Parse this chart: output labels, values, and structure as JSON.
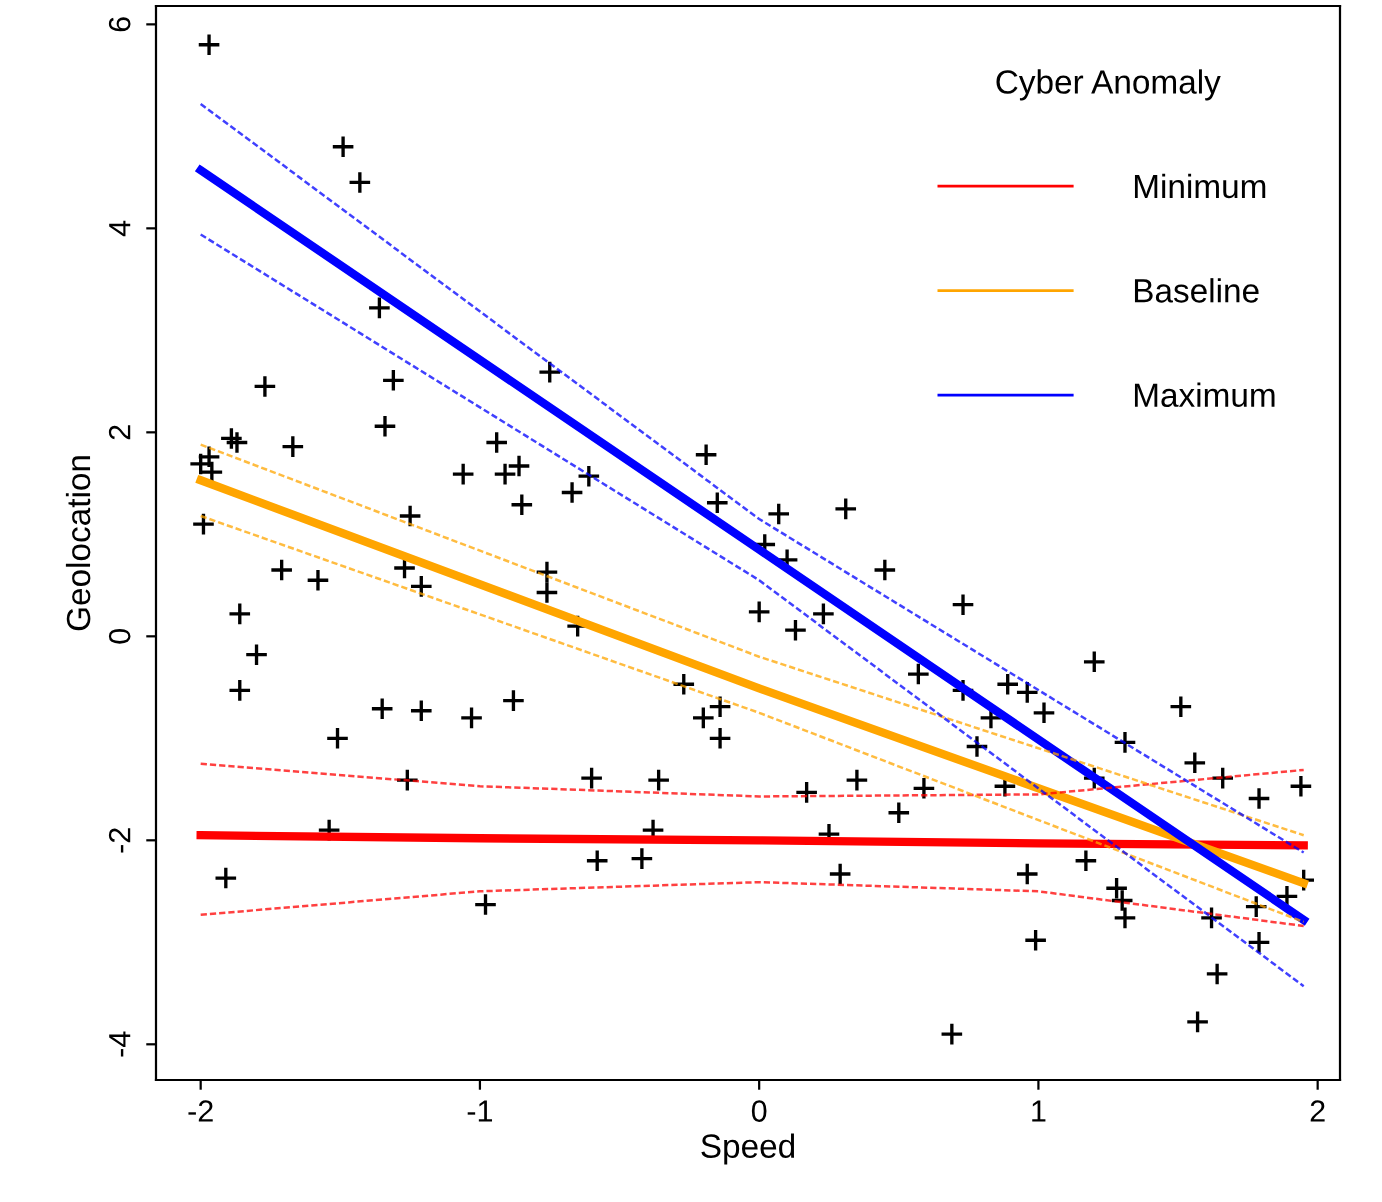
{
  "chart_data": {
    "type": "scatter",
    "xlabel": "Speed",
    "ylabel": "Geolocation",
    "legend_title": "Cyber Anomaly",
    "legend": "top right",
    "grid": false,
    "xlim": [
      -2.16,
      2.08
    ],
    "ylim": [
      -4.35,
      6.18
    ],
    "xticks": [
      -2,
      -1,
      0,
      1,
      2
    ],
    "yticks": [
      -4,
      -2,
      0,
      2,
      4,
      6
    ],
    "series": [
      {
        "color": "#000000",
        "marker": "cross",
        "x": [
          -1.97,
          -1.49,
          -1.43,
          -1.36,
          -0.75,
          -1.77,
          -1.31,
          -1.34,
          -1.89,
          -1.87,
          -1.67,
          -0.94,
          -2.0,
          -1.97,
          -1.96,
          -1.06,
          -0.91,
          -0.86,
          -0.67,
          -0.61,
          -0.85,
          -1.25,
          -1.99,
          -1.71,
          -1.58,
          -1.27,
          -1.21,
          -0.76,
          -0.76,
          -1.86,
          -1.8,
          -1.86,
          -1.35,
          -1.21,
          -1.03,
          -0.88,
          -0.65,
          -1.51,
          -1.26,
          -0.6,
          -1.54,
          -1.91,
          -0.98,
          -0.58,
          -0.19,
          -0.15,
          0.07,
          0.31,
          0.02,
          0.1,
          0.45,
          0.73,
          0.0,
          0.23,
          0.13,
          0.57,
          0.73,
          -0.27,
          -0.14,
          -0.2,
          -0.14,
          0.78,
          -0.36,
          0.17,
          0.35,
          0.59,
          0.5,
          -0.38,
          0.25,
          -0.42,
          0.29,
          0.69,
          1.2,
          0.89,
          0.96,
          1.02,
          0.83,
          1.51,
          1.31,
          1.56,
          1.66,
          1.79,
          1.94,
          0.88,
          1.2,
          1.17,
          0.96,
          1.28,
          1.3,
          1.31,
          1.62,
          1.78,
          1.89,
          1.95,
          1.79,
          0.99,
          1.64,
          1.57
        ],
        "values": [
          5.8,
          4.8,
          4.45,
          3.22,
          2.59,
          2.45,
          2.51,
          2.06,
          1.94,
          1.9,
          1.86,
          1.9,
          1.69,
          1.76,
          1.61,
          1.59,
          1.59,
          1.67,
          1.41,
          1.57,
          1.29,
          1.18,
          1.1,
          0.65,
          0.55,
          0.67,
          0.49,
          0.63,
          0.43,
          0.22,
          -0.18,
          -0.53,
          -0.71,
          -0.73,
          -0.8,
          -0.63,
          0.1,
          -1.0,
          -1.41,
          -1.39,
          -1.9,
          -2.37,
          -2.63,
          -2.2,
          1.78,
          1.31,
          1.2,
          1.25,
          0.9,
          0.75,
          0.65,
          0.31,
          0.24,
          0.22,
          0.06,
          -0.37,
          -0.53,
          -0.47,
          -0.69,
          -0.8,
          -1.0,
          -1.08,
          -1.41,
          -1.53,
          -1.41,
          -1.49,
          -1.73,
          -1.9,
          -1.94,
          -2.18,
          -2.33,
          -3.9,
          -0.25,
          -0.47,
          -0.55,
          -0.75,
          -0.8,
          -0.69,
          -1.04,
          -1.24,
          -1.39,
          -1.59,
          -1.47,
          -1.47,
          -1.39,
          -2.2,
          -2.33,
          -2.47,
          -2.59,
          -2.76,
          -2.76,
          -2.65,
          -2.55,
          -2.39,
          -3.0,
          -2.98,
          -3.31,
          -3.78
        ]
      },
      {
        "type": "line",
        "name": "Minimum",
        "color": "#ff0000",
        "marker": "none",
        "line_style": "solid",
        "x": [
          -2,
          -1,
          0,
          1,
          1.95
        ],
        "values": [
          -1.95,
          -1.98,
          -2.0,
          -2.03,
          -2.05
        ]
      },
      {
        "type": "line",
        "color": "#ff0000",
        "marker": "none",
        "line_style": "dashed",
        "x": [
          -2,
          -1,
          0,
          1,
          1.95
        ],
        "values": [
          -2.73,
          -2.5,
          -2.41,
          -2.5,
          -2.84
        ]
      },
      {
        "type": "line",
        "color": "#ff0000",
        "marker": "none",
        "line_style": "dashed",
        "x": [
          -2,
          -1,
          0,
          1,
          1.95
        ],
        "values": [
          -1.25,
          -1.47,
          -1.57,
          -1.55,
          -1.31
        ]
      },
      {
        "type": "line",
        "name": "Baseline",
        "color": "#ffa500",
        "marker": "none",
        "line_style": "solid",
        "x": [
          -2,
          0,
          1.95
        ],
        "values": [
          1.53,
          -0.51,
          -2.42
        ]
      },
      {
        "type": "line",
        "color": "#ffa500",
        "marker": "none",
        "line_style": "dashed",
        "x": [
          -2,
          0,
          1.95
        ],
        "values": [
          1.18,
          -0.75,
          -2.8
        ]
      },
      {
        "type": "line",
        "color": "#ffa500",
        "marker": "none",
        "line_style": "dashed",
        "x": [
          -2,
          0,
          1.95
        ],
        "values": [
          1.88,
          -0.2,
          -1.95
        ]
      },
      {
        "type": "line",
        "name": "Maximum",
        "color": "#0000ff",
        "marker": "none",
        "line_style": "solid",
        "x": [
          -2,
          0,
          1.95
        ],
        "values": [
          4.57,
          0.85,
          -2.78
        ]
      },
      {
        "type": "line",
        "color": "#0000ff",
        "marker": "none",
        "line_style": "dashed",
        "x": [
          -2,
          0,
          1.95
        ],
        "values": [
          3.94,
          0.55,
          -3.43
        ]
      },
      {
        "type": "line",
        "color": "#0000ff",
        "marker": "none",
        "line_style": "dashed",
        "x": [
          -2,
          0,
          1.95
        ],
        "values": [
          5.22,
          1.15,
          -2.12
        ]
      }
    ]
  }
}
